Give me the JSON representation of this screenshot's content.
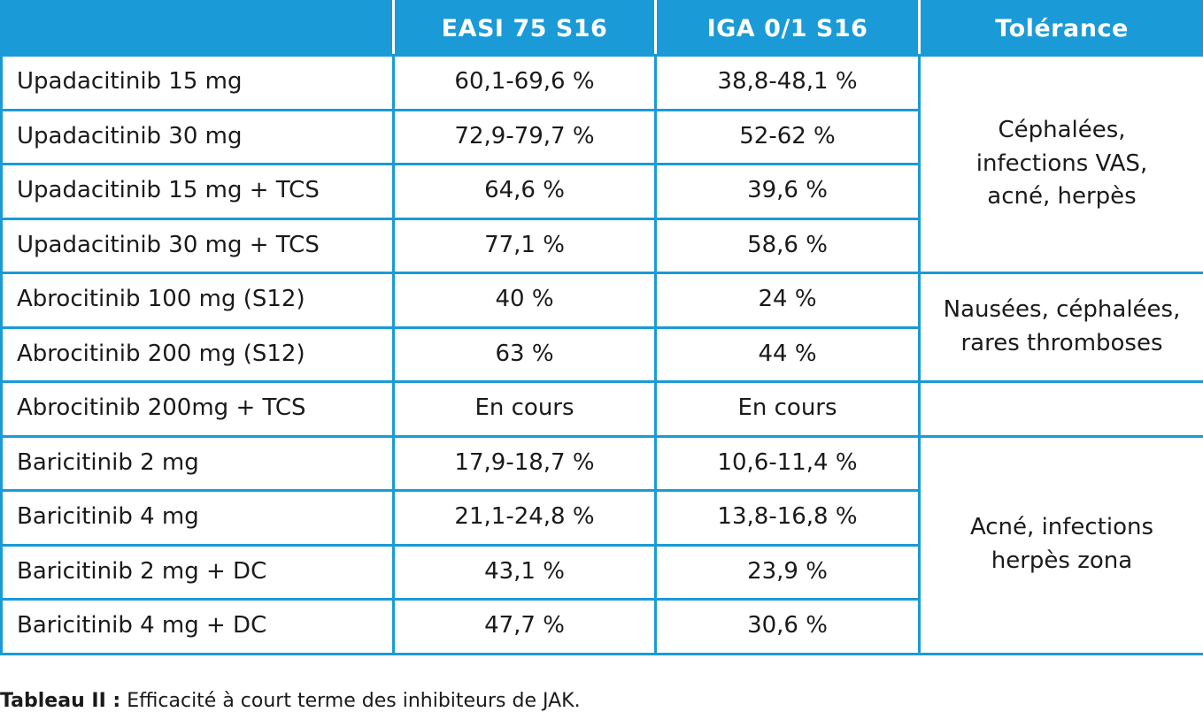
{
  "table": {
    "headers": [
      "",
      "EASI 75 S16",
      "IGA 0/1 S16",
      "Tolérance"
    ],
    "rows": [
      {
        "name": "Upadacitinib 15 mg",
        "easi": "60,1-69,6 %",
        "iga": "38,8-48,1 %"
      },
      {
        "name": "Upadacitinib 30 mg",
        "easi": "72,9-79,7 %",
        "iga": "52-62 %"
      },
      {
        "name": "Upadacitinib 15 mg + TCS",
        "easi": "64,6 %",
        "iga": "39,6 %"
      },
      {
        "name": "Upadacitinib 30 mg + TCS",
        "easi": "77,1 %",
        "iga": "58,6 %"
      },
      {
        "name": "Abrocitinib 100 mg (S12)",
        "easi": "40 %",
        "iga": "24 %"
      },
      {
        "name": "Abrocitinib 200 mg (S12)",
        "easi": "63 %",
        "iga": "44 %"
      },
      {
        "name": "Abrocitinib 200mg + TCS",
        "easi": "En cours",
        "iga": "En cours"
      },
      {
        "name": "Baricitinib 2 mg",
        "easi": "17,9-18,7 %",
        "iga": "10,6-11,4 %"
      },
      {
        "name": "Baricitinib 4 mg",
        "easi": "21,1-24,8 %",
        "iga": "13,8-16,8 %"
      },
      {
        "name": "Baricitinib 2 mg + DC",
        "easi": "43,1 %",
        "iga": "23,9 %"
      },
      {
        "name": "Baricitinib 4 mg + DC",
        "easi": "47,7 %",
        "iga": "30,6 %"
      }
    ],
    "tolerance": {
      "upadacitinib": [
        "Céphalées,",
        "infections VAS,",
        "acné, herpès"
      ],
      "abrocitinib": [
        "Nausées, céphalées,",
        "rares thromboses"
      ],
      "abrocitinib_tcs": "",
      "baricitinib": [
        "Acné, infections",
        "herpès zona"
      ]
    }
  },
  "caption": {
    "label": "Tableau II :",
    "text": " Efficacité à court terme des inhibiteurs de JAK."
  },
  "colors": {
    "header_bg": "#1a9ad6",
    "border": "#1a9ad6",
    "header_text": "#ffffff"
  }
}
